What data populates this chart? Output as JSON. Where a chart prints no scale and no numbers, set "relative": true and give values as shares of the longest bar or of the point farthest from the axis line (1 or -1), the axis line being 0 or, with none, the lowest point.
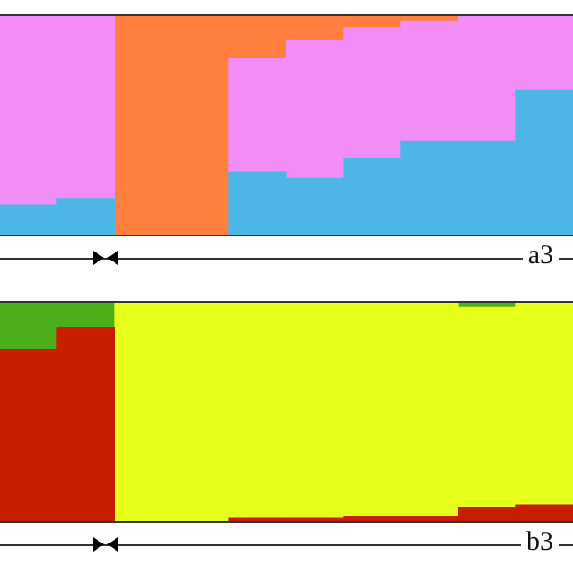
{
  "chart_data": [
    {
      "type": "bar",
      "stacked": true,
      "relative": true,
      "categories": [
        null,
        null,
        null,
        null,
        null,
        null,
        null,
        null,
        null,
        null
      ],
      "series": [
        {
          "color": "#4db6e6",
          "values": [
            0.14,
            0.17,
            0,
            0,
            0.29,
            0.26,
            0.35,
            0.43,
            0.43,
            0.66
          ]
        },
        {
          "color": "#f28ef5",
          "values": [
            0.86,
            0.83,
            0,
            0,
            0.51,
            0.62,
            0.59,
            0.54,
            0.57,
            0.34
          ]
        },
        {
          "color": "#ff7f3f",
          "values": [
            0,
            0,
            1,
            1,
            0.2,
            0.12,
            0.06,
            0.03,
            null,
            0
          ]
        }
      ],
      "annotations": [
        "a3"
      ]
    },
    {
      "type": "bar",
      "stacked": true,
      "relative": true,
      "categories": [
        null,
        null,
        null,
        null,
        null,
        null,
        null,
        null,
        null,
        null
      ],
      "series": [
        {
          "color": "#c81e00",
          "values": [
            0.78,
            0.88,
            0,
            null,
            0.02,
            0.02,
            0.03,
            0.03,
            0.07,
            0.08
          ]
        },
        {
          "color": "#e6ff1a",
          "values": [
            0,
            0,
            1,
            1,
            0.98,
            0.98,
            0.97,
            0.97,
            0.9,
            0.92
          ]
        },
        {
          "color": "#4caf1a",
          "values": [
            0.22,
            0.12,
            0,
            0,
            0,
            null,
            0,
            0,
            0.03,
            0
          ]
        }
      ],
      "annotations": [
        "b3"
      ]
    }
  ]
}
